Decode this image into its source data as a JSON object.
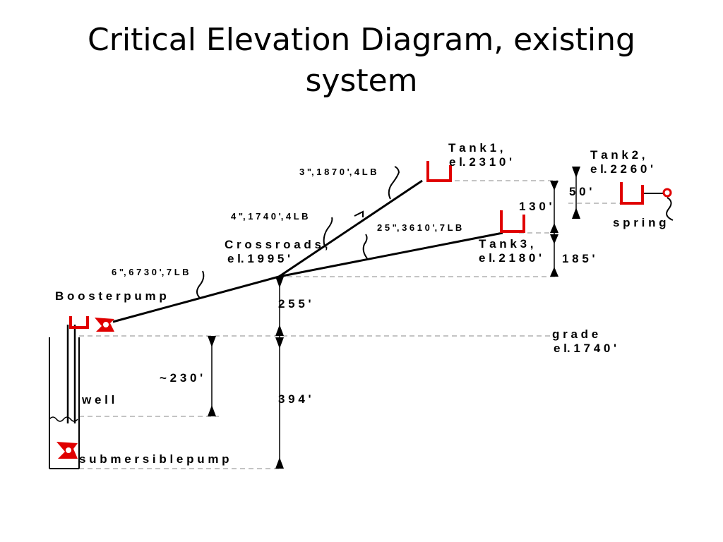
{
  "title": {
    "line1": "Critical Elevation Diagram, existing",
    "line2": "system"
  },
  "diagram": {
    "tanks": {
      "tank1": {
        "name": "T a n k  1 ,",
        "elevation": "e l. 2 3 1 0 '"
      },
      "tank2": {
        "name": "T a n k  2 ,",
        "elevation": "e l. 2 2 6 0 '"
      },
      "tank3": {
        "name": "T a n k  3 ,",
        "elevation": "e l. 2 1 8 0 '"
      }
    },
    "spring_label": "s p r i n g",
    "crossroads": {
      "name": "C r o s s r o a d s ,",
      "elevation": "e l. 1 9 9 5 '"
    },
    "pipe_notes": {
      "pipe1": "6 \", 6 7 3 0 ', 7 L B",
      "pipe2": "4 \", 1 7 4 0 ', 4 L B",
      "pipe3": "3 \", 1 8 7 0 ', 4 L B",
      "pipe4": "2 5 \", 3 6 1 0 ', 7 L B"
    },
    "booster_pump_label": "B o o s t e r  p u m p",
    "grade": {
      "name": "g r a d e",
      "elevation": "e l. 1 7 4 0 '"
    },
    "well_label": "w e l l",
    "submersible_label": "s u b m e r s i b l e  p u m p",
    "dimensions": {
      "d50": "5 0 '",
      "d130": "1 3 0 '",
      "d185": "1 8 5 '",
      "d255": "2 5 5 '",
      "d394": "3 9 4 '",
      "d230": "~ 2 3 0 '"
    },
    "colors": {
      "equipment": "#e00000",
      "lines": "#000000",
      "guides": "#888888"
    }
  }
}
